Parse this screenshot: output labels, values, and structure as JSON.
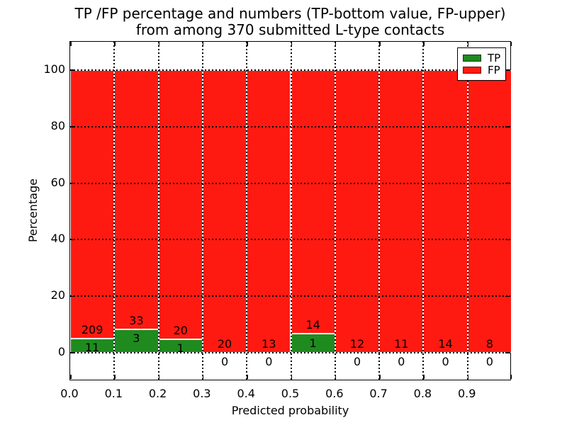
{
  "figure": {
    "title_line1": "TP /FP percentage and numbers (TP-bottom value, FP-upper)",
    "title_line2": "from among 370 submitted L-type contacts"
  },
  "axes": {
    "xlabel": "Predicted probability",
    "ylabel": "Percentage",
    "xtick_labels": [
      "0.0",
      "0.1",
      "0.2",
      "0.3",
      "0.4",
      "0.5",
      "0.6",
      "0.7",
      "0.8",
      "0.9"
    ],
    "ytick_labels": [
      "0",
      "20",
      "40",
      "60",
      "80",
      "100"
    ],
    "ytick_values": [
      0,
      20,
      40,
      60,
      80,
      100
    ],
    "grid_style": "dotted"
  },
  "legend": {
    "position": "upper right",
    "items": [
      {
        "label": "TP",
        "color": "#1f8b1f"
      },
      {
        "label": "FP",
        "color": "#ff1a11"
      }
    ]
  },
  "chart_data": {
    "type": "bar",
    "stacked": true,
    "title": "TP /FP percentage and numbers (TP-bottom value, FP-upper) from among 370 submitted L-type contacts",
    "xlabel": "Predicted probability",
    "ylabel": "Percentage",
    "total_contacts": 370,
    "bin_edges": [
      0.0,
      0.1,
      0.2,
      0.3,
      0.4,
      0.5,
      0.6,
      0.7,
      0.8,
      0.9,
      1.0
    ],
    "bar_total_pct": 100,
    "xlim": [
      0.0,
      1.0
    ],
    "ylim": [
      -10,
      110
    ],
    "series": [
      {
        "name": "TP",
        "color": "#1f8b1f",
        "counts": [
          11,
          3,
          1,
          0,
          0,
          1,
          0,
          0,
          0,
          0
        ]
      },
      {
        "name": "FP",
        "color": "#ff1a11",
        "counts": [
          209,
          33,
          20,
          20,
          13,
          14,
          12,
          11,
          14,
          8
        ]
      }
    ]
  }
}
